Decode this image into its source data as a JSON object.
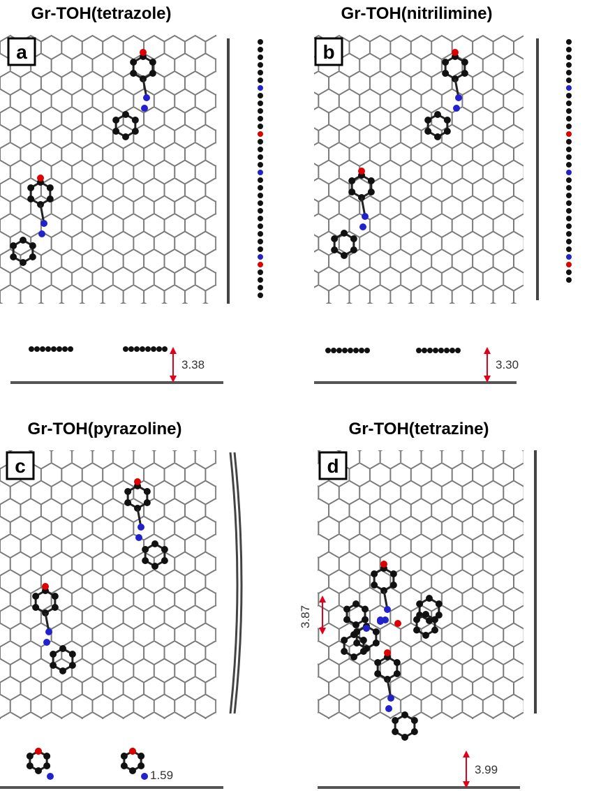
{
  "panels": [
    {
      "title": "Gr-TOH(tetrazole)",
      "letter": "a",
      "distances": [
        "3.38"
      ]
    },
    {
      "title": "Gr-TOH(nitrilimine)",
      "letter": "b",
      "distances": [
        "3.30"
      ]
    },
    {
      "title": "Gr-TOH(pyrazoline)",
      "letter": "c",
      "distances": [
        "1.59"
      ]
    },
    {
      "title": "Gr-TOH(tetrazine)",
      "letter": "d",
      "distances": [
        "3.87",
        "3.99"
      ]
    }
  ]
}
